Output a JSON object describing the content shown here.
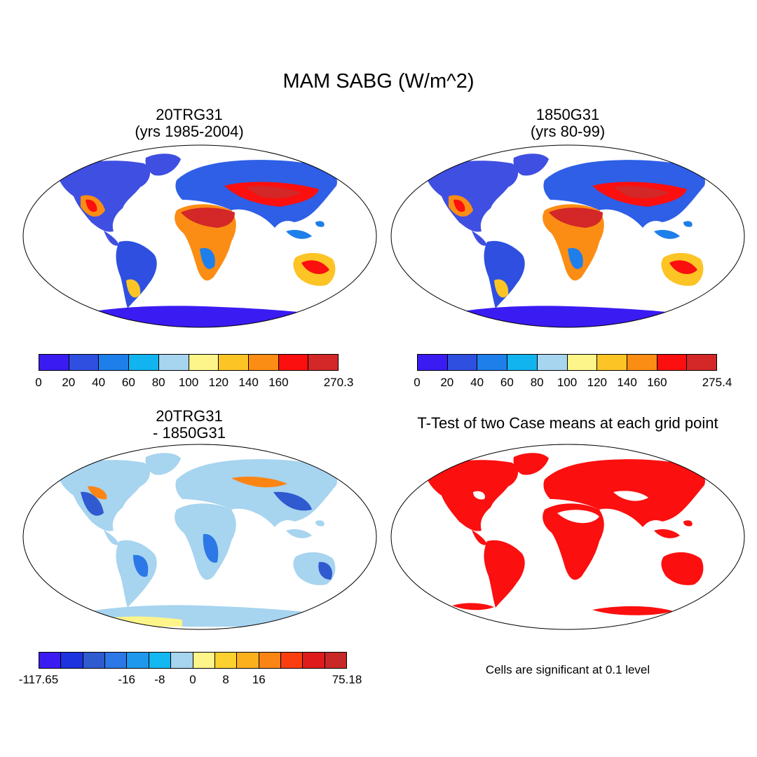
{
  "title": "MAM SABG (W/m^2)",
  "panels": {
    "top_left": {
      "title_line1": "20TRG31",
      "title_line2": "(yrs 1985-2004)"
    },
    "top_right": {
      "title_line1": "1850G31",
      "title_line2": "(yrs 80-99)"
    },
    "bottom_left": {
      "title_line1": "20TRG31",
      "title_line2": "- 1850G31"
    },
    "bottom_right": {
      "title_line1": "T-Test of two Case means at each grid point",
      "note": "Cells are significant at 0.1 level"
    }
  },
  "colorbars": {
    "abs_left": {
      "colors": [
        "#3a1cf2",
        "#2e4fe0",
        "#1f7fea",
        "#12b4f0",
        "#a7d4ef",
        "#fdf58a",
        "#fcc425",
        "#fb8d14",
        "#fb0f0f",
        "#d42727"
      ],
      "labels": [
        "0",
        "20",
        "40",
        "60",
        "80",
        "100",
        "120",
        "140",
        "160",
        "270.3"
      ]
    },
    "abs_right": {
      "colors": [
        "#3a1cf2",
        "#2e4fe0",
        "#1f7fea",
        "#12b4f0",
        "#a7d4ef",
        "#fdf58a",
        "#fcc425",
        "#fb8d14",
        "#fb0f0f",
        "#d42727"
      ],
      "labels": [
        "0",
        "20",
        "40",
        "60",
        "80",
        "100",
        "120",
        "140",
        "160",
        "275.4"
      ]
    },
    "diff": {
      "colors": [
        "#3a1cf2",
        "#1c33df",
        "#2f5ad0",
        "#2b78e6",
        "#1e98ec",
        "#12b8ef",
        "#a7d4ef",
        "#fdf58a",
        "#fcd12f",
        "#fbb01c",
        "#fb8514",
        "#fb3e10",
        "#e01b1b",
        "#c92828"
      ],
      "labels": [
        "-117.65",
        "-16",
        "-8",
        "0",
        "8",
        "16",
        "75.18"
      ]
    }
  }
}
